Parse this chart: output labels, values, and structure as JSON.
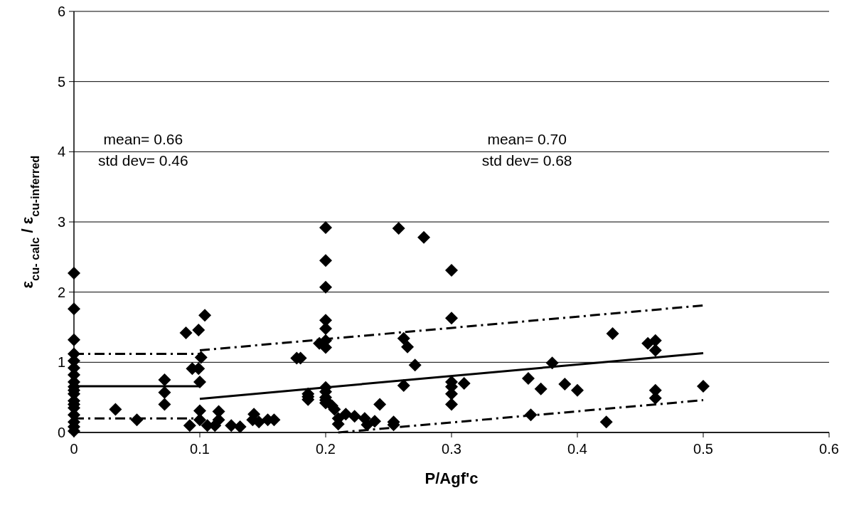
{
  "chart_data": {
    "type": "scatter",
    "xlabel": "P/Agf'c",
    "ylabel": "ε$_{cu- calc}$ / ε$_{cu-inferred}$",
    "xlim": [
      0,
      0.6
    ],
    "ylim": [
      0,
      6
    ],
    "xticks": [
      0,
      0.1,
      0.2,
      0.3,
      0.4,
      0.5,
      0.6
    ],
    "yticks": [
      0,
      1,
      2,
      3,
      4,
      5,
      6
    ],
    "grid": "y",
    "annotations": [
      "mean= 0.66\nstd dev= 0.46",
      "mean= 0.70\nstd dev= 0.68"
    ],
    "series": [
      {
        "color": "#000000",
        "marker": "diamond",
        "x": [
          0,
          0,
          0,
          0,
          0,
          0,
          0,
          0,
          0,
          0,
          0,
          0,
          0,
          0,
          0,
          0,
          0,
          0,
          0.033,
          0.05,
          0.072,
          0.072,
          0.072,
          0.089,
          0.099,
          0.104,
          0.101,
          0.094,
          0.099,
          0.1,
          0.1,
          0.092,
          0.1,
          0.106,
          0.112,
          0.115,
          0.115,
          0.125,
          0.132,
          0.143,
          0.142,
          0.147,
          0.154,
          0.159,
          0.177,
          0.18,
          0.186,
          0.186,
          0.186,
          0.2,
          0.2,
          0.2,
          0.2,
          0.2,
          0.2,
          0.2,
          0.195,
          0.2,
          0.2,
          0.2,
          0.2,
          0.2,
          0.205,
          0.207,
          0.21,
          0.21,
          0.216,
          0.223,
          0.231,
          0.233,
          0.239,
          0.243,
          0.254,
          0.254,
          0.258,
          0.278,
          0.262,
          0.265,
          0.271,
          0.262,
          0.3,
          0.3,
          0.3,
          0.3,
          0.3,
          0.3,
          0.31,
          0.361,
          0.363,
          0.371,
          0.38,
          0.39,
          0.4,
          0.423,
          0.428,
          0.456,
          0.462,
          0.462,
          0.462,
          0.462,
          0.5
        ],
        "values": [
          2.27,
          1.76,
          1.32,
          1.12,
          1.02,
          0.92,
          0.82,
          0.72,
          0.65,
          0.55,
          0.45,
          0.35,
          0.25,
          0.15,
          0.08,
          0.02,
          0.6,
          0.4,
          0.33,
          0.18,
          0.75,
          0.57,
          0.4,
          1.42,
          1.46,
          1.67,
          1.07,
          0.91,
          0.91,
          0.72,
          0.31,
          0.1,
          0.18,
          0.1,
          0.1,
          0.3,
          0.18,
          0.1,
          0.08,
          0.26,
          0.18,
          0.15,
          0.18,
          0.18,
          1.06,
          1.06,
          0.55,
          0.51,
          0.47,
          2.92,
          2.45,
          2.07,
          1.6,
          1.48,
          1.31,
          1.21,
          1.27,
          0.64,
          0.58,
          0.5,
          0.42,
          0.46,
          0.38,
          0.33,
          0.2,
          0.12,
          0.26,
          0.23,
          0.2,
          0.11,
          0.16,
          0.4,
          0.15,
          0.11,
          2.91,
          2.78,
          1.34,
          1.22,
          0.96,
          0.67,
          2.31,
          1.63,
          0.72,
          0.65,
          0.55,
          0.4,
          0.7,
          0.77,
          0.25,
          0.62,
          0.99,
          0.69,
          0.6,
          0.15,
          1.41,
          1.27,
          1.31,
          1.17,
          0.6,
          0.49,
          0.66
        ]
      },
      {
        "type": "line",
        "color": "#000000",
        "line_style": "solid",
        "x": [
          0,
          0.1
        ],
        "values": [
          0.66,
          0.66
        ]
      },
      {
        "type": "line",
        "color": "#000000",
        "line_style": "dashdot",
        "x": [
          0,
          0.1
        ],
        "values": [
          1.12,
          1.12
        ]
      },
      {
        "type": "line",
        "color": "#000000",
        "line_style": "dashdot",
        "x": [
          0,
          0.1
        ],
        "values": [
          0.2,
          0.2
        ]
      },
      {
        "type": "line",
        "color": "#000000",
        "line_style": "solid",
        "x": [
          0.1,
          0.5
        ],
        "values": [
          0.48,
          1.13
        ]
      },
      {
        "type": "line",
        "color": "#000000",
        "line_style": "dashdot",
        "x": [
          0.1,
          0.5
        ],
        "values": [
          1.17,
          1.81
        ]
      },
      {
        "type": "line",
        "color": "#000000",
        "line_style": "dashdot",
        "x": [
          0.21,
          0.5
        ],
        "values": [
          0,
          0.46
        ]
      }
    ]
  }
}
